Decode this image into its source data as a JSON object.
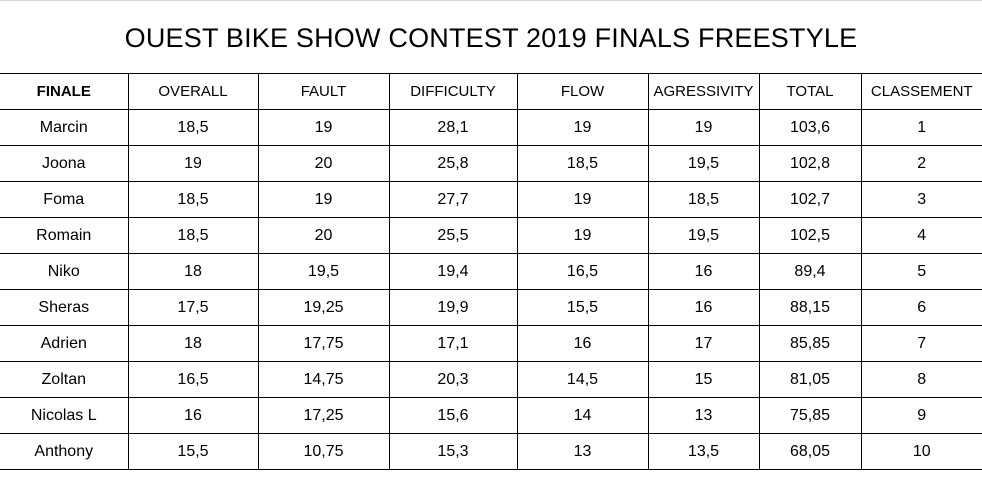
{
  "title": "OUEST BIKE SHOW CONTEST 2019 FINALS FREESTYLE",
  "table": {
    "headers": [
      "FINALE",
      "OVERALL",
      "FAULT",
      "DIFFICULTY",
      "FLOW",
      "AGRESSIVITY",
      "TOTAL",
      "CLASSEMENT"
    ],
    "rows": [
      [
        "Marcin",
        "18,5",
        "19",
        "28,1",
        "19",
        "19",
        "103,6",
        "1"
      ],
      [
        "Joona",
        "19",
        "20",
        "25,8",
        "18,5",
        "19,5",
        "102,8",
        "2"
      ],
      [
        "Foma",
        "18,5",
        "19",
        "27,7",
        "19",
        "18,5",
        "102,7",
        "3"
      ],
      [
        "Romain",
        "18,5",
        "20",
        "25,5",
        "19",
        "19,5",
        "102,5",
        "4"
      ],
      [
        "Niko",
        "18",
        "19,5",
        "19,4",
        "16,5",
        "16",
        "89,4",
        "5"
      ],
      [
        "Sheras",
        "17,5",
        "19,25",
        "19,9",
        "15,5",
        "16",
        "88,15",
        "6"
      ],
      [
        "Adrien",
        "18",
        "17,75",
        "17,1",
        "16",
        "17",
        "85,85",
        "7"
      ],
      [
        "Zoltan",
        "16,5",
        "14,75",
        "20,3",
        "14,5",
        "15",
        "81,05",
        "8"
      ],
      [
        "Nicolas L",
        "16",
        "17,25",
        "15,6",
        "14",
        "13",
        "75,85",
        "9"
      ],
      [
        "Anthony",
        "15,5",
        "10,75",
        "15,3",
        "13",
        "13,5",
        "68,05",
        "10"
      ]
    ]
  }
}
